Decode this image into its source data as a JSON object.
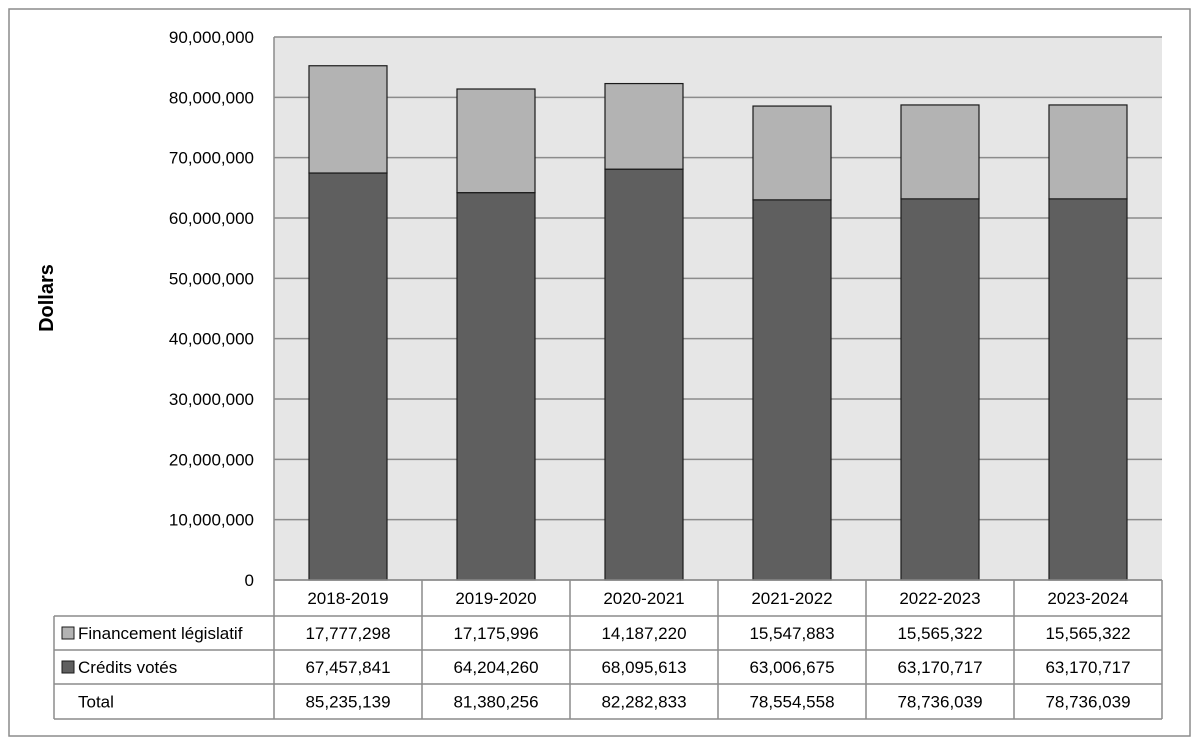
{
  "chart_data": {
    "type": "bar",
    "stacked": true,
    "title": "",
    "xlabel": "",
    "ylabel": "Dollars",
    "ylim": [
      0,
      90000000
    ],
    "yticks": [
      0,
      10000000,
      20000000,
      30000000,
      40000000,
      50000000,
      60000000,
      70000000,
      80000000,
      90000000
    ],
    "ytick_labels": [
      "0",
      "10,000,000",
      "20,000,000",
      "30,000,000",
      "40,000,000",
      "50,000,000",
      "60,000,000",
      "70,000,000",
      "80,000,000",
      "90,000,000"
    ],
    "grid": true,
    "categories": [
      "2018-2019",
      "2019-2020",
      "2020-2021",
      "2021-2022",
      "2022-2023",
      "2023-2024"
    ],
    "series": [
      {
        "name": "Financement législatif",
        "color": "#b3b3b3",
        "values": [
          17777298,
          17175996,
          14187220,
          15547883,
          15565322,
          15565322
        ],
        "labels": [
          "17,777,298",
          "17,175,996",
          "14,187,220",
          "15,547,883",
          "15,565,322",
          "15,565,322"
        ]
      },
      {
        "name": "Crédits votés",
        "color": "#5f5f5f",
        "values": [
          67457841,
          64204260,
          68095613,
          63006675,
          63170717,
          63170717
        ],
        "labels": [
          "67,457,841",
          "64,204,260",
          "68,095,613",
          "63,006,675",
          "63,170,717",
          "63,170,717"
        ]
      }
    ],
    "total": {
      "name": "Total",
      "values": [
        85235139,
        81380256,
        82282833,
        78554558,
        78736039,
        78736039
      ],
      "labels": [
        "85,235,139",
        "81,380,256",
        "82,282,833",
        "78,554,558",
        "78,736,039",
        "78,736,039"
      ]
    },
    "legend": "data-table-below"
  }
}
